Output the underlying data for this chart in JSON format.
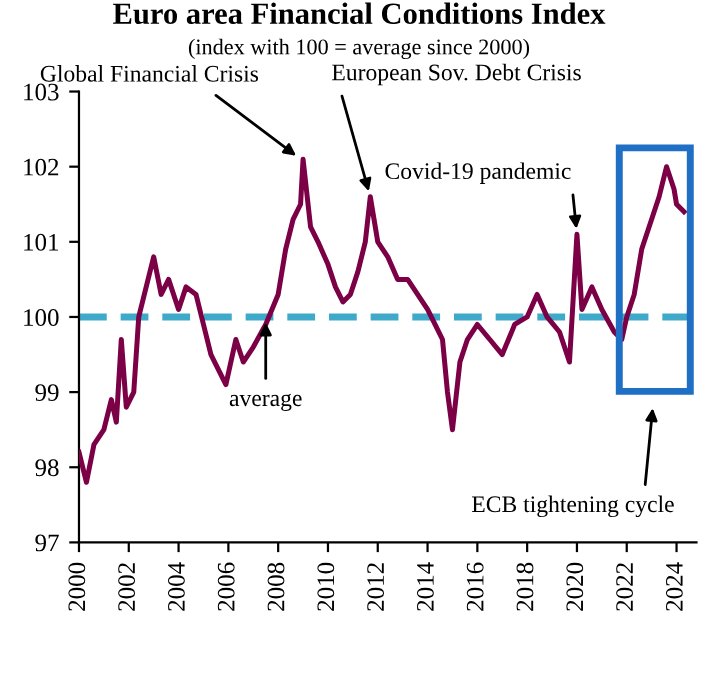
{
  "chart_data": {
    "type": "line",
    "title": "Euro area Financial Conditions Index",
    "subtitle": "(index with 100 = average since 2000)",
    "x": [
      2000.0,
      2000.3,
      2000.6,
      2001.0,
      2001.3,
      2001.5,
      2001.7,
      2001.9,
      2002.2,
      2002.4,
      2002.7,
      2003.0,
      2003.3,
      2003.6,
      2004.0,
      2004.3,
      2004.7,
      2005.0,
      2005.3,
      2005.6,
      2005.9,
      2006.3,
      2006.6,
      2007.0,
      2007.5,
      2008.0,
      2008.3,
      2008.6,
      2008.9,
      2009.0,
      2009.3,
      2009.6,
      2010.0,
      2010.3,
      2010.6,
      2010.9,
      2011.2,
      2011.5,
      2011.7,
      2012.0,
      2012.4,
      2012.8,
      2013.2,
      2013.6,
      2014.0,
      2014.3,
      2014.6,
      2014.8,
      2015.0,
      2015.3,
      2015.6,
      2016.0,
      2016.5,
      2017.0,
      2017.5,
      2018.0,
      2018.4,
      2018.8,
      2019.3,
      2019.7,
      2020.0,
      2020.2,
      2020.6,
      2021.0,
      2021.5,
      2021.8,
      2022.0,
      2022.3,
      2022.6,
      2023.0,
      2023.3,
      2023.6,
      2023.9,
      2024.0,
      2024.3
    ],
    "series": [
      {
        "color": "#7b0046",
        "values": [
          98.2,
          97.8,
          98.3,
          98.5,
          98.9,
          98.6,
          99.7,
          98.8,
          99.0,
          100.0,
          100.4,
          100.8,
          100.3,
          100.5,
          100.1,
          100.4,
          100.3,
          99.9,
          99.5,
          99.3,
          99.1,
          99.7,
          99.4,
          99.6,
          99.9,
          100.3,
          100.9,
          101.3,
          101.5,
          102.1,
          101.2,
          101.0,
          100.7,
          100.4,
          100.2,
          100.3,
          100.6,
          101.0,
          101.6,
          101.0,
          100.8,
          100.5,
          100.5,
          100.3,
          100.1,
          99.9,
          99.7,
          99.0,
          98.5,
          99.4,
          99.7,
          99.9,
          99.7,
          99.5,
          99.9,
          100.0,
          100.3,
          100.0,
          99.8,
          99.4,
          101.1,
          100.1,
          100.4,
          100.1,
          99.8,
          99.7,
          100.0,
          100.3,
          100.9,
          101.3,
          101.6,
          102.0,
          101.7,
          101.5,
          101.4
        ]
      }
    ],
    "xlim": [
      2000,
      2024.8
    ],
    "xticks": [
      2000,
      2002,
      2004,
      2006,
      2008,
      2010,
      2012,
      2014,
      2016,
      2018,
      2020,
      2022,
      2024
    ],
    "ylim": [
      97,
      103
    ],
    "yticks": [
      97,
      98,
      99,
      100,
      101,
      102,
      103
    ],
    "ref_lines": [
      {
        "axis": "y",
        "value": 100,
        "color": "#3fa9c9",
        "line_style": "dashed"
      }
    ],
    "annotations": [
      "ECB tightening cycle",
      {
        "text": "Global Financial Crisis",
        "x": 2008.9,
        "y": 102.1
      },
      {
        "text": "European Sov. Debt Crisis",
        "x": 2011.7,
        "y": 101.6
      },
      {
        "text": "Covid-19 pandemic",
        "x": 2020.0,
        "y": 101.1
      },
      {
        "text": "average",
        "x": 2007.5,
        "y": 100
      }
    ],
    "grid": false,
    "legend": false,
    "line_style": "solid",
    "marker": "none"
  }
}
